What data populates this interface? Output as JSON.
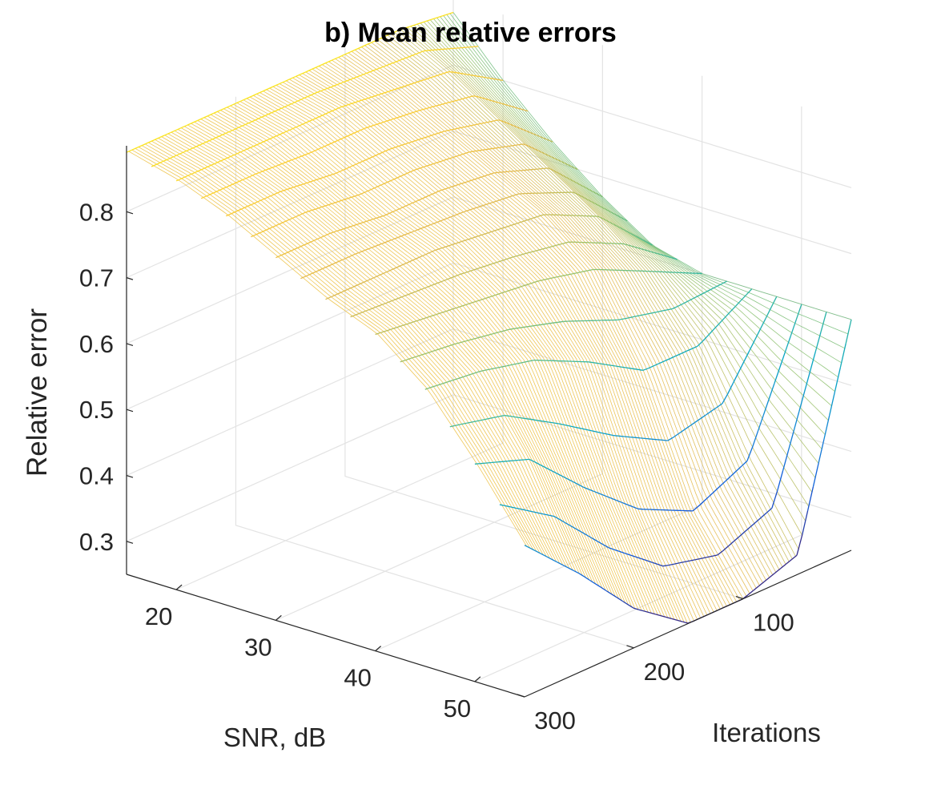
{
  "chart_data": {
    "type": "surface",
    "title": "b) Mean relative errors",
    "xlabel": "SNR, dB",
    "ylabel": "Iterations",
    "zlabel": "Relative error",
    "x_ticks": [
      20,
      30,
      40,
      50
    ],
    "y_ticks": [
      100,
      200,
      300
    ],
    "z_ticks": [
      "0.3",
      "0.4",
      "0.5",
      "0.6",
      "0.7",
      "0.8"
    ],
    "xlim": [
      15,
      55
    ],
    "ylim": [
      1,
      300
    ],
    "zlim": [
      0.25,
      0.9
    ],
    "grid": true,
    "colormap": "parula",
    "style": "mesh",
    "surface_points": {
      "snr": [
        15,
        20,
        25,
        30,
        35,
        40,
        45,
        50,
        55
      ],
      "iterations": [
        1,
        50,
        100,
        150,
        200,
        250,
        300
      ],
      "relative_error": [
        [
          0.88,
          0.89,
          0.89,
          0.89,
          0.89,
          0.89,
          0.89
        ],
        [
          0.8,
          0.85,
          0.86,
          0.87,
          0.87,
          0.87,
          0.87
        ],
        [
          0.73,
          0.8,
          0.82,
          0.83,
          0.83,
          0.84,
          0.84
        ],
        [
          0.67,
          0.75,
          0.78,
          0.79,
          0.79,
          0.8,
          0.8
        ],
        [
          0.62,
          0.7,
          0.74,
          0.75,
          0.76,
          0.76,
          0.76
        ],
        [
          0.6,
          0.64,
          0.68,
          0.7,
          0.71,
          0.72,
          0.73
        ],
        [
          0.6,
          0.55,
          0.55,
          0.6,
          0.64,
          0.66,
          0.67
        ],
        [
          0.6,
          0.4,
          0.36,
          0.4,
          0.47,
          0.55,
          0.58
        ],
        [
          0.6,
          0.28,
          0.25,
          0.25,
          0.31,
          0.4,
          0.48
        ]
      ]
    }
  }
}
